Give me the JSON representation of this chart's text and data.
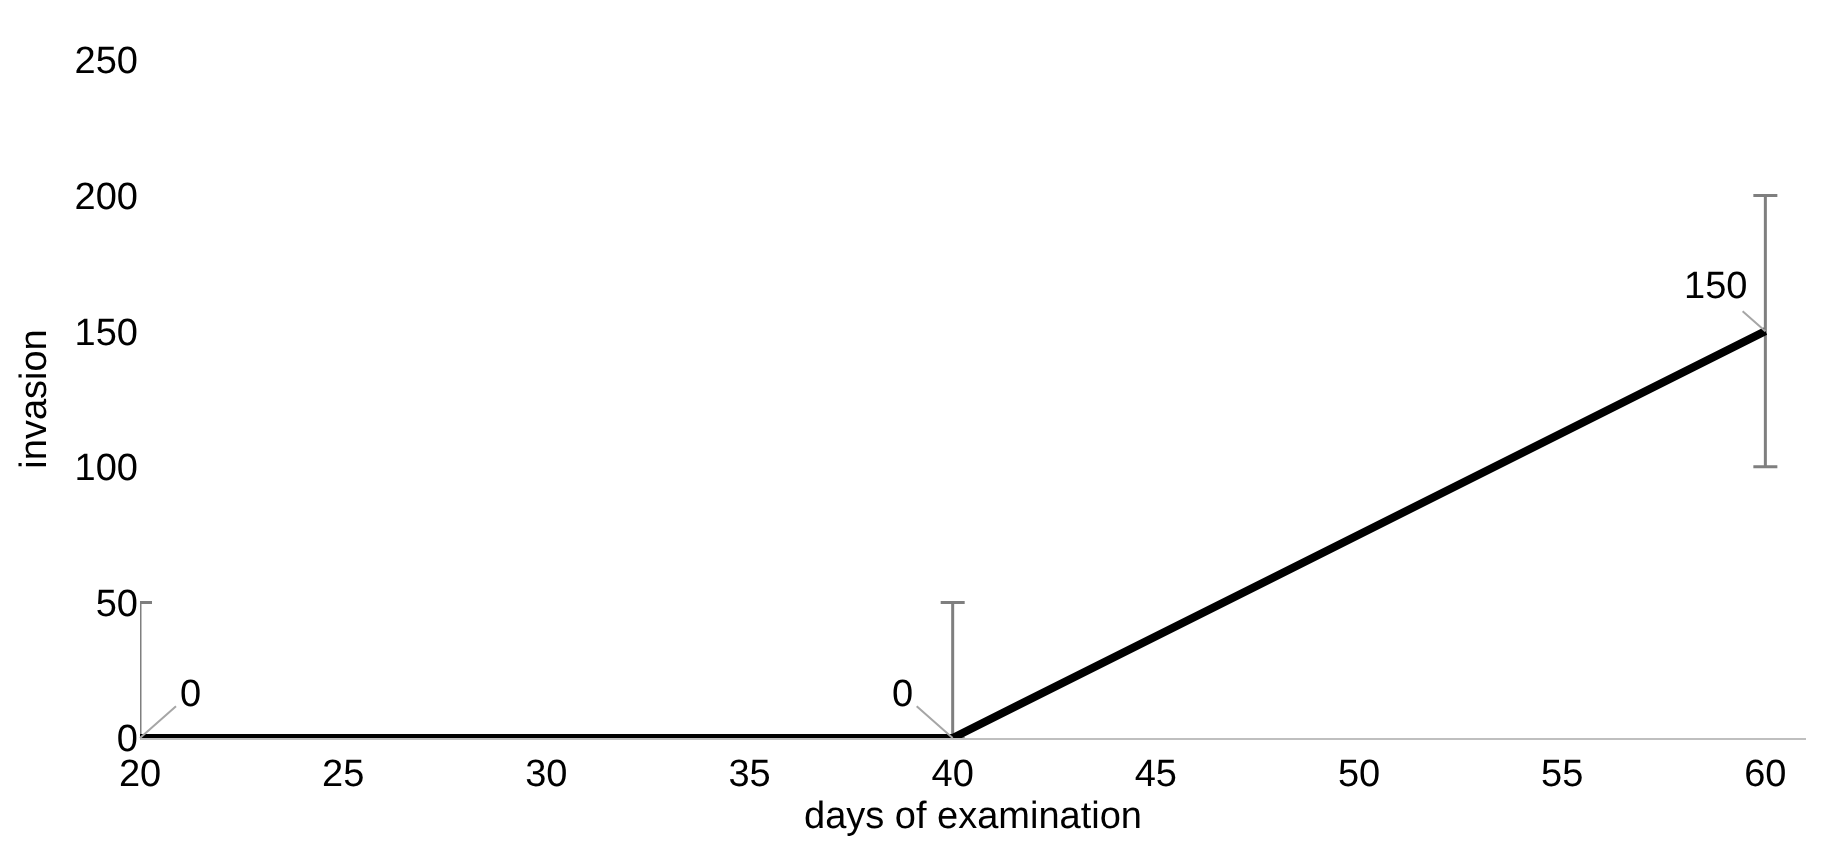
{
  "chart_data": {
    "type": "line",
    "xlabel": "days of examination",
    "ylabel": "invasion",
    "x": [
      20,
      40,
      60
    ],
    "series": [
      {
        "color": "#000000",
        "values": [
          0,
          0,
          150
        ],
        "errors": [
          [
            0,
            50
          ],
          [
            0,
            50
          ],
          [
            100,
            200
          ]
        ]
      }
    ],
    "xlim": [
      20,
      61
    ],
    "xticks": [
      20,
      25,
      30,
      35,
      40,
      45,
      50,
      55,
      60
    ],
    "ylim": [
      0,
      250
    ],
    "yticks": [
      0,
      50,
      100,
      150,
      200,
      250
    ],
    "grid": false,
    "legend": false,
    "marker": "none",
    "line_style": "solid",
    "data_labels": true
  }
}
